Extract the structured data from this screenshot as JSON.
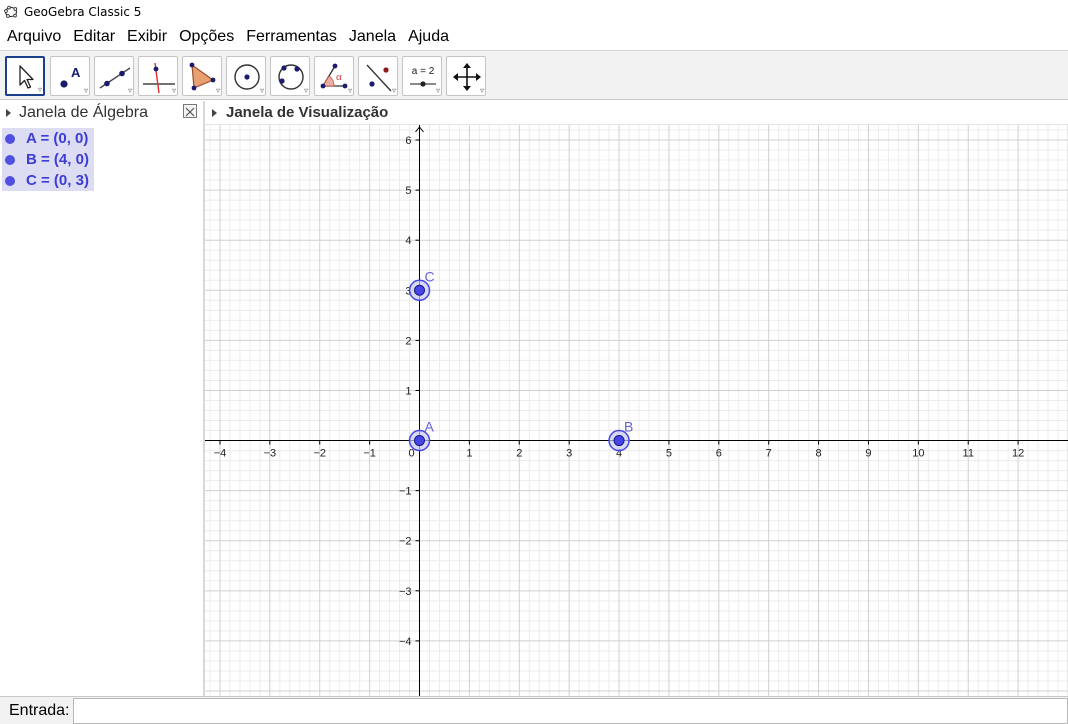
{
  "window": {
    "title": "GeoGebra Classic 5",
    "app_icon": "geogebra-logo-icon"
  },
  "menu": {
    "items": [
      "Arquivo",
      "Editar",
      "Exibir",
      "Opções",
      "Ferramentas",
      "Janela",
      "Ajuda"
    ]
  },
  "toolbar": {
    "tools": [
      {
        "name": "move-tool",
        "icon": "arrow-pointer-icon",
        "selected": true
      },
      {
        "name": "point-tool",
        "icon": "point-icon",
        "label": "A"
      },
      {
        "name": "line-tool",
        "icon": "line-through-two-points-icon"
      },
      {
        "name": "perpendicular-line-tool",
        "icon": "perpendicular-line-icon"
      },
      {
        "name": "polygon-tool",
        "icon": "polygon-icon"
      },
      {
        "name": "circle-tool",
        "icon": "circle-center-point-icon"
      },
      {
        "name": "circle-three-points-tool",
        "icon": "circle-three-points-icon"
      },
      {
        "name": "angle-tool",
        "icon": "angle-icon",
        "label": "α"
      },
      {
        "name": "reflect-tool",
        "icon": "reflect-about-line-icon"
      },
      {
        "name": "slider-tool",
        "icon": "slider-icon",
        "label": "a = 2"
      },
      {
        "name": "move-view-tool",
        "icon": "move-graphics-view-icon"
      }
    ]
  },
  "algebra": {
    "title": "Janela de Álgebra",
    "objects": [
      {
        "text": "A = (0, 0)"
      },
      {
        "text": "B = (4, 0)"
      },
      {
        "text": "C = (0, 3)"
      }
    ]
  },
  "graphics": {
    "title": "Janela de Visualização",
    "x_range": [
      -4.3,
      13
    ],
    "y_range": [
      -5.1,
      6.3
    ],
    "x_ticks": [
      -4,
      -3,
      -2,
      -1,
      0,
      1,
      2,
      3,
      4,
      5,
      6,
      7,
      8,
      9,
      10,
      11,
      12
    ],
    "y_ticks": [
      -4,
      -3,
      -2,
      -1,
      1,
      2,
      3,
      4,
      5,
      6
    ],
    "points": [
      {
        "label": "A",
        "x": 0,
        "y": 0
      },
      {
        "label": "B",
        "x": 4,
        "y": 0
      },
      {
        "label": "C",
        "x": 0,
        "y": 3
      }
    ],
    "colors": {
      "point": "#4646e8",
      "point_label": "#6464d8",
      "grid_major": "#d0d0d0",
      "grid_minor": "#ececec",
      "axis": "#000000"
    }
  },
  "input_bar": {
    "label": "Entrada:",
    "value": "",
    "placeholder": ""
  }
}
